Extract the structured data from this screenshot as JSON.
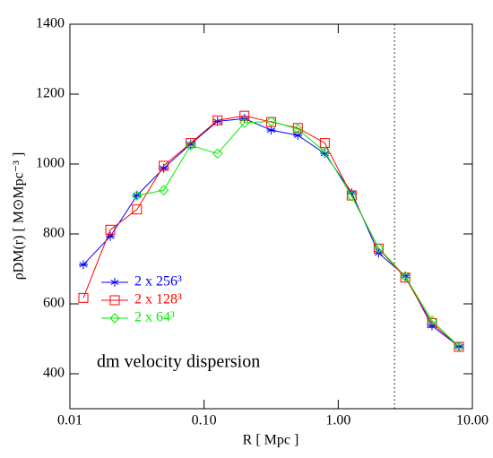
{
  "chart_data": {
    "type": "line",
    "xlabel": "R [ Mpc ]",
    "ylabel": "ρDM(r)  [ M⊙Mpc⁻³ ]",
    "annotation": "dm velocity dispersion",
    "x": [
      0.0126,
      0.02,
      0.0316,
      0.05,
      0.0794,
      0.126,
      0.2,
      0.316,
      0.5,
      0.794,
      1.26,
      2,
      3.16,
      5,
      7.94
    ],
    "series": [
      {
        "name": "2 x 256³",
        "color": "#0000ff",
        "marker": "asterisk",
        "values": [
          712,
          793,
          910,
          988,
          1057,
          1122,
          1130,
          1097,
          1082,
          1030,
          918,
          745,
          680,
          537,
          478
        ]
      },
      {
        "name": "2 x 128³",
        "color": "#ff0000",
        "marker": "square",
        "values": [
          617,
          812,
          870,
          995,
          1060,
          1125,
          1138,
          1120,
          1103,
          1060,
          910,
          758,
          675,
          545,
          477
        ]
      },
      {
        "name": "2 x 64³",
        "color": "#00ee00",
        "marker": "diamond",
        "values": [
          null,
          null,
          910,
          925,
          1053,
          1030,
          1118,
          1122,
          1100,
          1035,
          908,
          760,
          678,
          552,
          478
        ]
      }
    ],
    "vline": 2.63,
    "xscale": "log",
    "xlim": [
      0.01,
      10
    ],
    "xticks": [
      0.01,
      {
        "value": 0.1,
        "label": "0.10"
      },
      {
        "value": 1,
        "label": "1.00"
      },
      {
        "value": 10,
        "label": "10.00"
      }
    ],
    "ylim": [
      300,
      1400
    ],
    "yticks": [
      400,
      600,
      800,
      1000,
      1200,
      1400
    ]
  }
}
